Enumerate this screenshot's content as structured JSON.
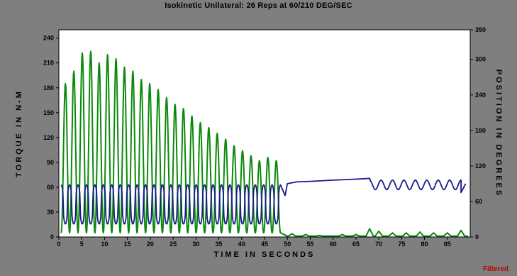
{
  "title": "Isokinetic Unilateral: 26 Reps  at 60/210 DEG/SEC",
  "status_label": "Filtered",
  "colors": {
    "frame": "#7f7f7f",
    "plot_bg": "#ffffff",
    "torque": "#0a8a0a",
    "position": "#1a1a90",
    "status": "#c00000"
  },
  "chart_data": {
    "type": "line",
    "xlabel": "TIME IN SECONDS",
    "ylabel": "TORQUE IN N-M",
    "y2label": "POSITION IN DEGREES",
    "xlim": [
      0,
      90
    ],
    "ylim": [
      0,
      250
    ],
    "y2lim": [
      0,
      350
    ],
    "x_ticks": [
      0,
      5,
      10,
      15,
      20,
      25,
      30,
      35,
      40,
      45,
      50,
      55,
      60,
      65,
      70,
      75,
      80,
      85
    ],
    "y_ticks": [
      0,
      30,
      60,
      90,
      120,
      150,
      180,
      210,
      240
    ],
    "y2_ticks": [
      0,
      60,
      120,
      180,
      240,
      300,
      350
    ],
    "series": [
      {
        "axis": "left",
        "repetitions": {
          "count": 26,
          "start": 0.5,
          "end": 48.5,
          "peaks_nm": [
            185,
            200,
            222,
            224,
            210,
            220,
            215,
            205,
            200,
            190,
            185,
            178,
            168,
            160,
            155,
            146,
            138,
            132,
            125,
            118,
            110,
            104,
            98,
            92,
            96,
            92
          ],
          "trough_nm": 5
        },
        "tail": {
          "drop_end": 50,
          "baseline_nm": 1,
          "bumps": [
            {
              "x": 51,
              "y": 4
            },
            {
              "x": 54,
              "y": 3
            },
            {
              "x": 57,
              "y": 2
            },
            {
              "x": 62,
              "y": 3
            },
            {
              "x": 65,
              "y": 3
            },
            {
              "x": 68,
              "y": 10
            },
            {
              "x": 70,
              "y": 7
            },
            {
              "x": 73,
              "y": 5
            },
            {
              "x": 76,
              "y": 5
            },
            {
              "x": 79,
              "y": 6
            },
            {
              "x": 82,
              "y": 5
            },
            {
              "x": 85,
              "y": 5
            },
            {
              "x": 88,
              "y": 8
            }
          ]
        }
      },
      {
        "axis": "right",
        "repetitions": {
          "count": 26,
          "start": 0.5,
          "end": 48.5,
          "high_deg": 88,
          "low_deg": 22
        },
        "tail": [
          {
            "x": 49.5,
            "y": 70
          },
          {
            "x": 50,
            "y": 90
          },
          {
            "x": 52,
            "y": 93
          },
          {
            "x": 55,
            "y": 94
          },
          {
            "x": 60,
            "y": 96
          },
          {
            "x": 63,
            "y": 97
          },
          {
            "x": 66,
            "y": 98
          },
          {
            "x": 68,
            "y": 99
          }
        ],
        "wavy_section": {
          "start": 68,
          "end": 88,
          "mean_deg": 88,
          "amplitude_deg": 8,
          "cycles": 8
        },
        "end": [
          {
            "x": 88,
            "y": 75
          },
          {
            "x": 89,
            "y": 90
          }
        ]
      }
    ]
  }
}
